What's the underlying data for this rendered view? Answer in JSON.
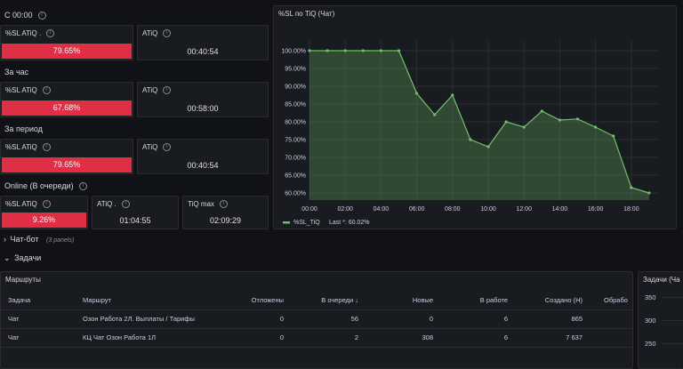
{
  "sections": {
    "s1": {
      "label": "С 00:00"
    },
    "s2": {
      "label": "За час"
    },
    "s3": {
      "label": "За период"
    },
    "s4": {
      "label": "Online (В очереди)"
    }
  },
  "stats": {
    "s1_sl": {
      "title": "%SL ATiQ .",
      "value": "79.65%"
    },
    "s1_atiq": {
      "title": "ATiQ",
      "value": "00:40:54"
    },
    "s2_sl": {
      "title": "%SL ATiQ",
      "value": "67.68%"
    },
    "s2_atiq": {
      "title": "ATiQ",
      "value": "00:58:00"
    },
    "s3_sl": {
      "title": "%SL ATiQ",
      "value": "79.65%"
    },
    "s3_atiq": {
      "title": "ATiQ",
      "value": "00:40:54"
    },
    "s4_sl": {
      "title": "%SL ATiQ",
      "value": "9.26%"
    },
    "s4_atiq": {
      "title": "ATiQ .",
      "value": "01:04:55"
    },
    "s4_tiqmax": {
      "title": "TiQ max",
      "value": "02:09:29"
    }
  },
  "colors": {
    "red": "#e02f44",
    "green_line": "#73bf69",
    "bg": "#111217",
    "panel": "#181b1f"
  },
  "rows": {
    "chatbot": {
      "label": "Чат-бот",
      "count": "(3 panels)"
    },
    "tasks": {
      "label": "Задачи"
    }
  },
  "routes_panel": {
    "title": "Маршруты",
    "columns": [
      "Задача",
      "Маршрут",
      "Отложены",
      "В очереди",
      "Новые",
      "В работе",
      "Создано (Н)",
      "Обрабо"
    ],
    "sort_indicator": "↓",
    "rows": [
      [
        "Чат",
        "Озон Работа 2Л. Выплаты / Тарифы",
        "0",
        "56",
        "0",
        "6",
        "865",
        ""
      ],
      [
        "Чат",
        "КЦ Чат Озон Работа 1Л",
        "0",
        "2",
        "308",
        "6",
        "7 637",
        ""
      ]
    ]
  },
  "tasks_panel": {
    "title": "Задачи (Ча",
    "yticks": [
      "350",
      "300",
      "250"
    ]
  },
  "chart_data": {
    "type": "area",
    "title": "%SL по TiQ (Чат)",
    "x_ticks": [
      "00:00",
      "02:00",
      "04:00",
      "06:00",
      "08:00",
      "10:00",
      "12:00",
      "14:00",
      "16:00",
      "18:00"
    ],
    "y_ticks": [
      "100.00%",
      "95.00%",
      "90.00%",
      "85.00%",
      "80.00%",
      "75.00%",
      "70.00%",
      "65.00%",
      "60.00%"
    ],
    "ylim": [
      58,
      103
    ],
    "xlim": [
      0,
      19.5
    ],
    "x": [
      0,
      1,
      2,
      3,
      4,
      5,
      6,
      7,
      8,
      9,
      10,
      11,
      12,
      13,
      14,
      15,
      16,
      17,
      18,
      19
    ],
    "y": [
      100,
      100,
      100,
      100,
      100,
      100,
      88,
      82,
      87.5,
      75,
      73,
      80,
      78.5,
      83,
      80.5,
      80.8,
      78.5,
      76,
      61.5,
      60
    ],
    "legend": {
      "name": "%SL_TiQ",
      "last": "Last *: 60.02%"
    },
    "color": "#73bf69"
  }
}
